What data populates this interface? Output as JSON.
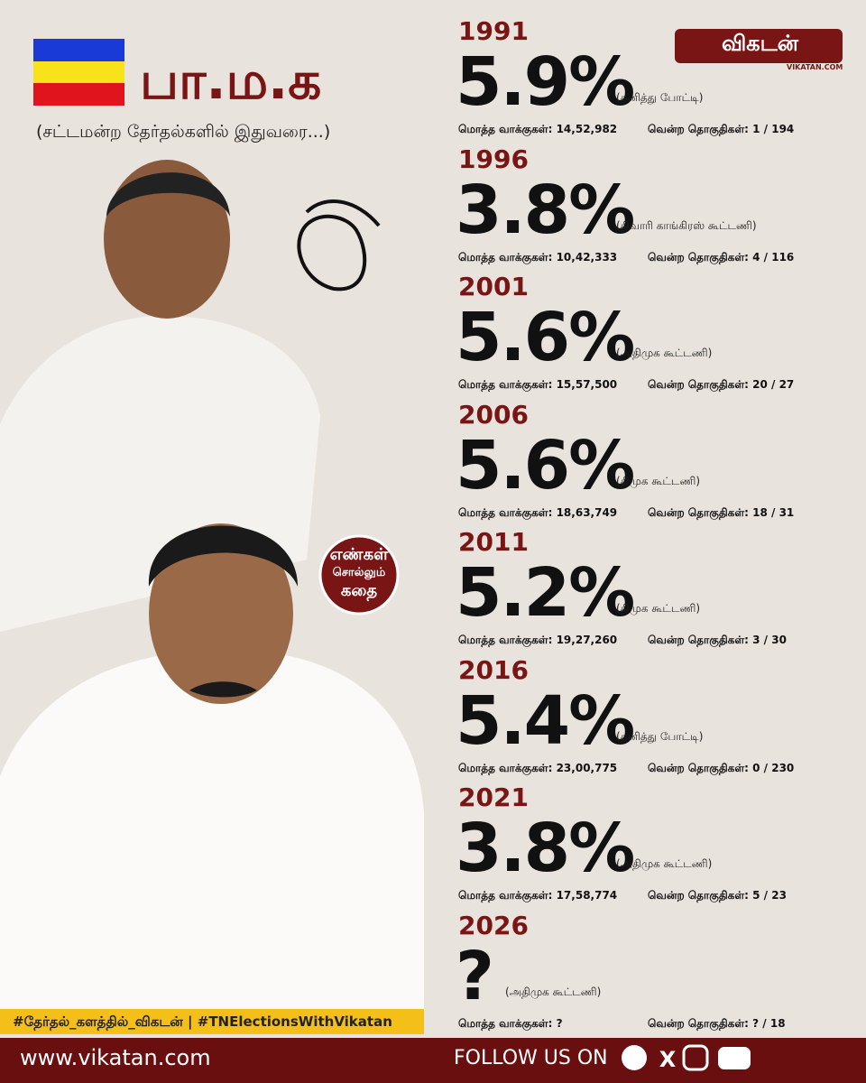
{
  "header": {
    "title": "பா.ம.க",
    "subtitle": "(சட்டமன்ற தேர்தல்களில் இதுவரை...)"
  },
  "logo": {
    "name": "விகடன்",
    "site": "VIKATAN.COM"
  },
  "badge": {
    "lines": [
      "எண்கள்",
      "சொல்லும்",
      "கதை"
    ]
  },
  "entries": [
    {
      "year": "1991",
      "percent": "5.9%",
      "alliance": "(தனித்து போட்டி)",
      "votes": "மொத்த வாக்குகள்: 14,52,982",
      "seats": "வென்ற தொகுதிகள்: 1 / 194"
    },
    {
      "year": "1996",
      "percent": "3.8%",
      "alliance": "(திவாரி காங்கிரஸ் கூட்டணி)",
      "votes": "மொத்த வாக்குகள்: 10,42,333",
      "seats": "வென்ற தொகுதிகள்: 4 / 116"
    },
    {
      "year": "2001",
      "percent": "5.6%",
      "alliance": "(அதிமுக கூட்டணி)",
      "votes": "மொத்த வாக்குகள்: 15,57,500",
      "seats": "வென்ற தொகுதிகள்: 20 / 27"
    },
    {
      "year": "2006",
      "percent": "5.6%",
      "alliance": "(திமுக கூட்டணி)",
      "votes": "மொத்த வாக்குகள்: 18,63,749",
      "seats": "வென்ற தொகுதிகள்: 18 / 31"
    },
    {
      "year": "2011",
      "percent": "5.2%",
      "alliance": "(திமுக கூட்டணி)",
      "votes": "மொத்த வாக்குகள்: 19,27,260",
      "seats": "வென்ற தொகுதிகள்: 3 / 30"
    },
    {
      "year": "2016",
      "percent": "5.4%",
      "alliance": "(தனித்து போட்டி)",
      "votes": "மொத்த வாக்குகள்: 23,00,775",
      "seats": "வென்ற தொகுதிகள்: 0 / 230"
    },
    {
      "year": "2021",
      "percent": "3.8%",
      "alliance": "(அதிமுக கூட்டணி)",
      "votes": "மொத்த வாக்குகள்: 17,58,774",
      "seats": "வென்ற தொகுதிகள்: 5 / 23"
    },
    {
      "year": "2026",
      "percent": "?",
      "alliance": "(அதிமுக கூட்டணி)",
      "votes": "மொத்த வாக்குகள்: ?",
      "seats": "வென்ற தொகுதிகள்: ? / 18"
    }
  ],
  "hashtag": "#தேர்தல்_களத்தில்_விகடன் | #TNElectionsWithVikatan",
  "footer": {
    "site": "www.vikatan.com",
    "follow": "FOLLOW US ON"
  }
}
